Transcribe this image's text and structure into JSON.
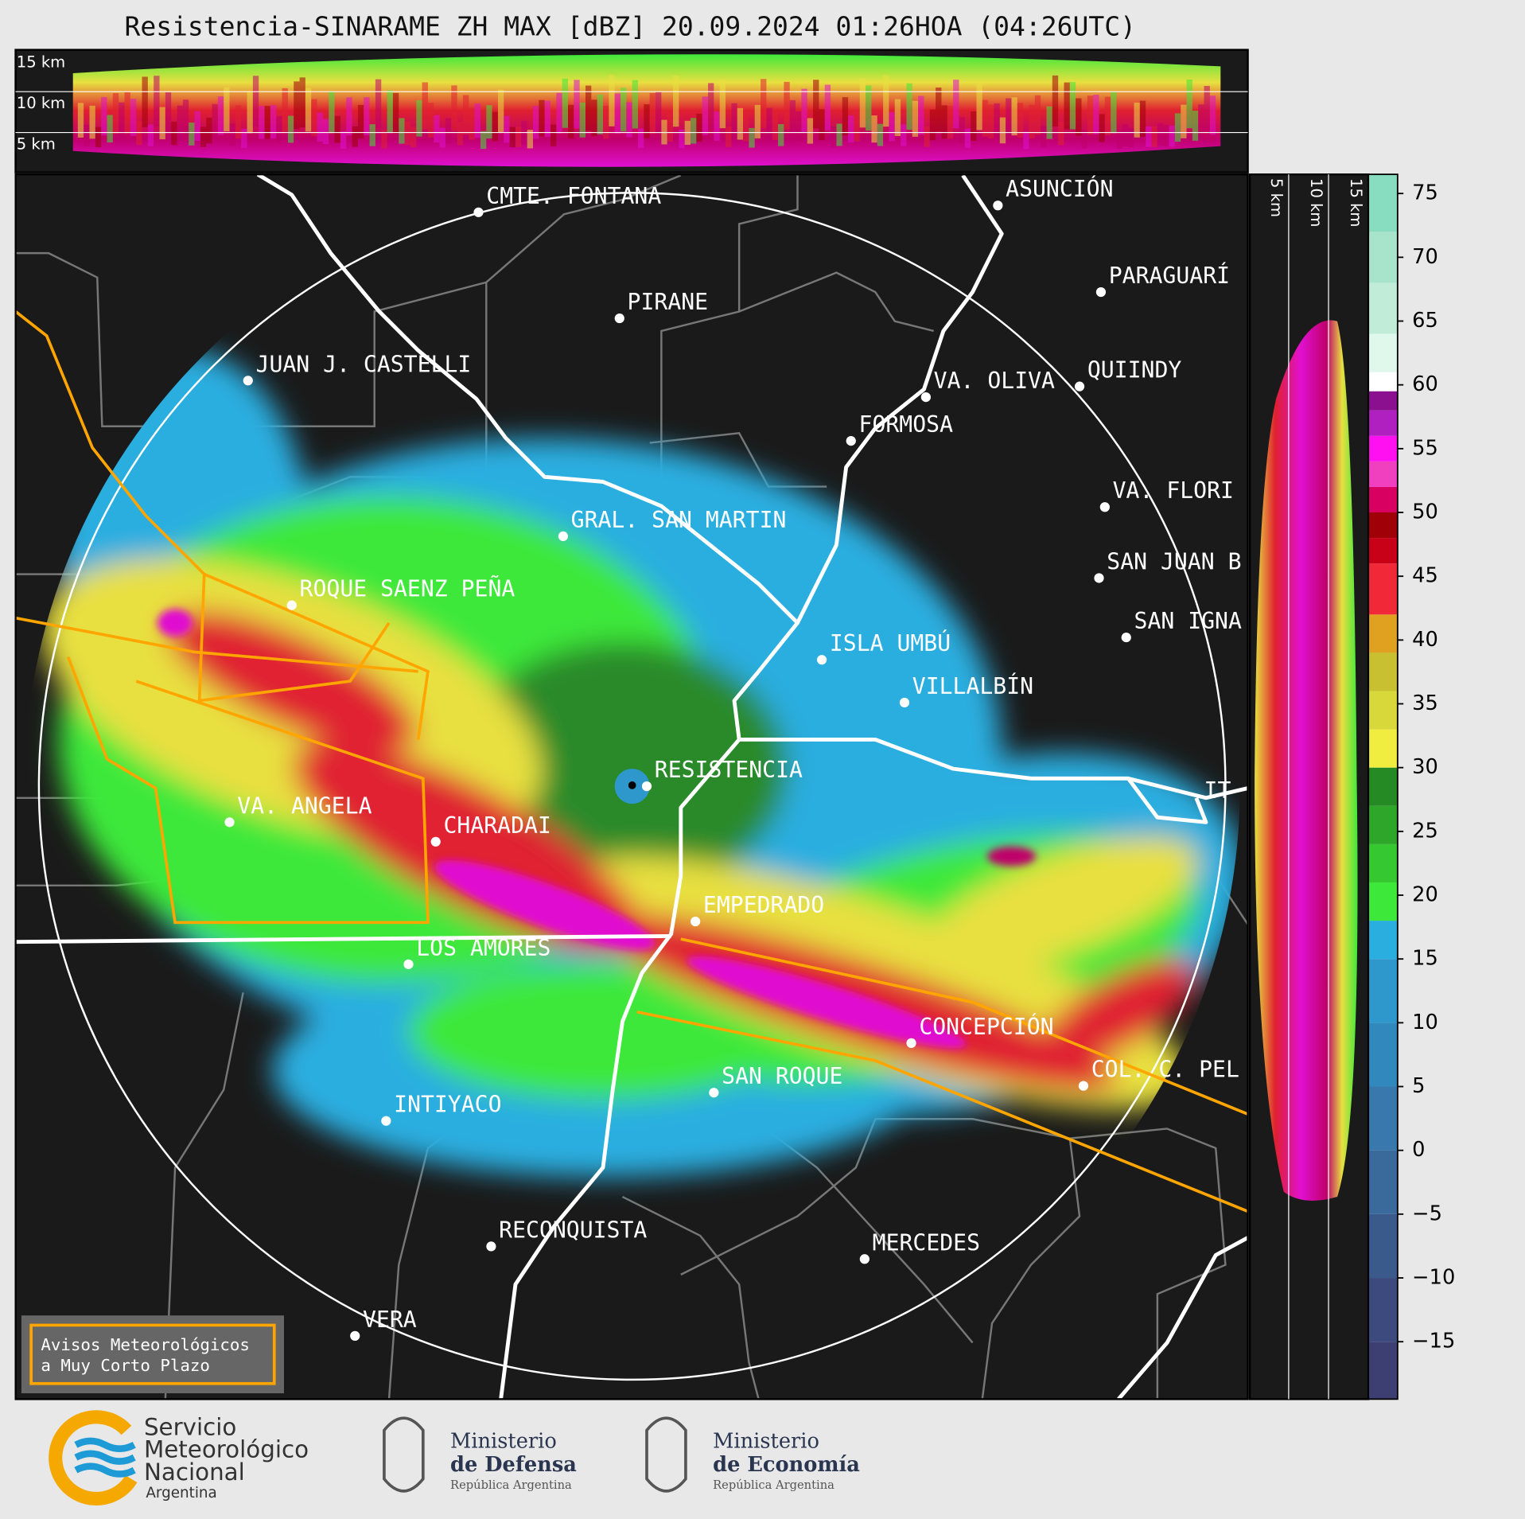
{
  "title": "Resistencia-SINARAME ZH MAX [dBZ] 20.09.2024 01:26HOA (04:26UTC)",
  "top_profile": {
    "labels": [
      "15 km",
      "10 km",
      "5 km"
    ]
  },
  "side_profile": {
    "labels": [
      "5 km",
      "10 km",
      "15 km"
    ]
  },
  "cities": [
    {
      "name": "CMTE. FONTANA"
    },
    {
      "name": "PIRANE"
    },
    {
      "name": "ASUNCIÓN"
    },
    {
      "name": "PARAGUARÍ"
    },
    {
      "name": "JUAN J. CASTELLI"
    },
    {
      "name": "VA. OLIVA"
    },
    {
      "name": "QUIINDY"
    },
    {
      "name": "FORMOSA"
    },
    {
      "name": "VA. FLORI"
    },
    {
      "name": "GRAL. SAN MARTIN"
    },
    {
      "name": "SAN JUAN B"
    },
    {
      "name": "ROQUE SAENZ PEÑA"
    },
    {
      "name": "SAN IGNA"
    },
    {
      "name": "ISLA UMBÚ"
    },
    {
      "name": "VILLALBÍN"
    },
    {
      "name": "RESISTENCIA"
    },
    {
      "name": "VA. ANGELA"
    },
    {
      "name": "CHARADAI"
    },
    {
      "name": "EMPEDRADO"
    },
    {
      "name": "LOS AMORES"
    },
    {
      "name": "CONCEPCIÓN"
    },
    {
      "name": "COL. C. PEL"
    },
    {
      "name": "SAN ROQUE"
    },
    {
      "name": "INTIYACO"
    },
    {
      "name": "RECONQUISTA"
    },
    {
      "name": "MERCEDES"
    },
    {
      "name": "VERA"
    },
    {
      "name": "IT"
    }
  ],
  "colorbar": {
    "lim": [
      -19.5,
      76.5
    ],
    "ticks": [
      75,
      70,
      65,
      60,
      55,
      50,
      45,
      40,
      35,
      30,
      25,
      20,
      15,
      10,
      5,
      0,
      {
        "value": -5,
        "label": "−5"
      },
      {
        "value": -10,
        "label": "−10"
      },
      {
        "value": -15,
        "label": "−15"
      }
    ],
    "bands": [
      {
        "from": -19.5,
        "color": "#3d3f72"
      },
      {
        "from": -15,
        "color": "#3c4a7e"
      },
      {
        "from": -10,
        "color": "#3b5a8c"
      },
      {
        "from": -5,
        "color": "#3a6a9c"
      },
      {
        "from": 0,
        "color": "#3878ac"
      },
      {
        "from": 5,
        "color": "#3088bc"
      },
      {
        "from": 10,
        "color": "#2e98cc"
      },
      {
        "from": 15,
        "color": "#2aaee0"
      },
      {
        "from": 18,
        "color": "#3ee83a"
      },
      {
        "from": 21,
        "color": "#36c830"
      },
      {
        "from": 24,
        "color": "#2ea62a"
      },
      {
        "from": 27,
        "color": "#268a24"
      },
      {
        "from": 30,
        "color": "#f0ec40"
      },
      {
        "from": 33,
        "color": "#d8d83a"
      },
      {
        "from": 36,
        "color": "#c8c030"
      },
      {
        "from": 39,
        "color": "#e0a020"
      },
      {
        "from": 42,
        "color": "#f02838"
      },
      {
        "from": 46,
        "color": "#c80018"
      },
      {
        "from": 48,
        "color": "#a00008"
      },
      {
        "from": 50,
        "color": "#d80060"
      },
      {
        "from": 52,
        "color": "#f040c0"
      },
      {
        "from": 54,
        "color": "#ff10f0"
      },
      {
        "from": 56,
        "color": "#b020c0"
      },
      {
        "from": 58,
        "color": "#8a1090"
      },
      {
        "from": 59.5,
        "color": "#ffffff"
      },
      {
        "from": 61,
        "color": "#e0f8ec"
      },
      {
        "from": 64,
        "color": "#c0ecd8"
      },
      {
        "from": 68,
        "color": "#a8e4cc"
      },
      {
        "from": 72,
        "color": "#88dcc0"
      }
    ]
  },
  "notice": {
    "lines": [
      "Avisos Meteorológicos",
      "a Muy Corto Plazo"
    ]
  },
  "logos": {
    "smn": [
      "Servicio",
      "Meteorológico",
      "Nacional",
      "Argentina"
    ],
    "defensa": [
      "Ministerio",
      "de Defensa",
      "República Argentina"
    ],
    "economia": [
      "Ministerio",
      "de Economía",
      "República Argentina"
    ]
  }
}
